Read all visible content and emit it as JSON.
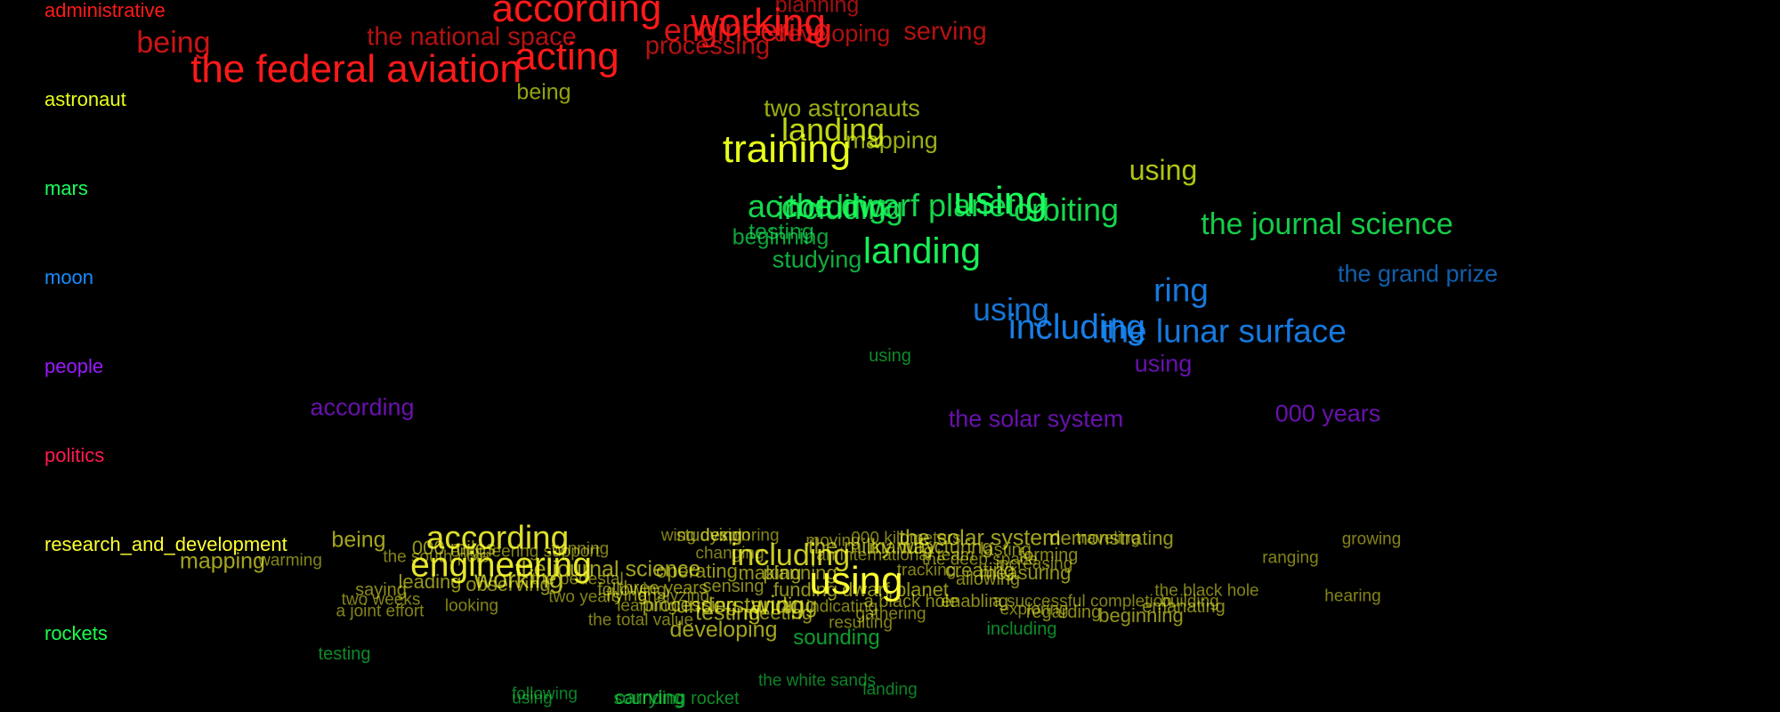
{
  "categories": [
    {
      "key": "administrative",
      "label": "administrative",
      "color": "#ff1a1a"
    },
    {
      "key": "astronaut",
      "label": "astronaut",
      "color": "#e6ff1a"
    },
    {
      "key": "mars",
      "label": "mars",
      "color": "#1aff5c"
    },
    {
      "key": "moon",
      "label": "moon",
      "color": "#1a8cff"
    },
    {
      "key": "people",
      "label": "people",
      "color": "#9b1aff"
    },
    {
      "key": "politics",
      "label": "politics",
      "color": "#ff1a4d"
    },
    {
      "key": "research_and_development",
      "label": "research_and_development",
      "color": "#ffff33"
    },
    {
      "key": "rockets",
      "label": "rockets",
      "color": "#1aff4d"
    }
  ],
  "words": [
    {
      "t": "according",
      "c": "administrative",
      "s": 1.0
    },
    {
      "t": "planning",
      "c": "administrative",
      "s": 0.45
    },
    {
      "t": "working",
      "c": "administrative",
      "s": 1.0
    },
    {
      "t": "engineering",
      "c": "administrative",
      "s": 0.75
    },
    {
      "t": "developing",
      "c": "administrative",
      "s": 0.5
    },
    {
      "t": "serving",
      "c": "administrative",
      "s": 0.55
    },
    {
      "t": "being",
      "c": "administrative",
      "s": 0.7
    },
    {
      "t": "the national space",
      "c": "administrative",
      "s": 0.55
    },
    {
      "t": "acting",
      "c": "administrative",
      "s": 1.0
    },
    {
      "t": "processing",
      "c": "administrative",
      "s": 0.55
    },
    {
      "t": "the federal aviation",
      "c": "administrative",
      "s": 1.0
    },
    {
      "t": "being",
      "c": "astronaut",
      "s": 0.45
    },
    {
      "t": "two astronauts",
      "c": "astronaut",
      "s": 0.5
    },
    {
      "t": "landing",
      "c": "astronaut",
      "s": 0.75
    },
    {
      "t": "mapping",
      "c": "astronaut",
      "s": 0.5
    },
    {
      "t": "training",
      "c": "astronaut",
      "s": 1.0
    },
    {
      "t": "using",
      "c": "astronaut",
      "s": 0.65
    },
    {
      "t": "the dwarf planet",
      "c": "mars",
      "s": 0.75
    },
    {
      "t": "according",
      "c": "mars",
      "s": 0.75
    },
    {
      "t": "including",
      "c": "mars",
      "s": 0.75
    },
    {
      "t": "using",
      "c": "mars",
      "s": 1.0
    },
    {
      "t": "orbiting",
      "c": "mars",
      "s": 0.75
    },
    {
      "t": "testing",
      "c": "mars",
      "s": 0.45
    },
    {
      "t": "beginning",
      "c": "mars",
      "s": 0.45
    },
    {
      "t": "landing",
      "c": "mars",
      "s": 0.9
    },
    {
      "t": "studying",
      "c": "mars",
      "s": 0.5
    },
    {
      "t": "the journal science",
      "c": "mars",
      "s": 0.7
    },
    {
      "t": "ring",
      "c": "moon",
      "s": 0.8
    },
    {
      "t": "the grand prize",
      "c": "moon",
      "s": 0.5
    },
    {
      "t": "using",
      "c": "moon",
      "s": 0.75
    },
    {
      "t": "including",
      "c": "moon",
      "s": 0.85
    },
    {
      "t": "the lunar surface",
      "c": "moon",
      "s": 0.8
    },
    {
      "t": "using",
      "c": "people",
      "s": 0.5
    },
    {
      "t": "according",
      "c": "people",
      "s": 0.5
    },
    {
      "t": "the solar system",
      "c": "people",
      "s": 0.5
    },
    {
      "t": "000 years",
      "c": "people",
      "s": 0.5
    },
    {
      "t": "being",
      "c": "research_and_development",
      "s": 0.45
    },
    {
      "t": "mapping",
      "c": "research_and_development",
      "s": 0.45
    },
    {
      "t": "warming",
      "c": "research_and_development",
      "s": 0.25
    },
    {
      "t": "according",
      "c": "research_and_development",
      "s": 0.8
    },
    {
      "t": "000 miles",
      "c": "research_and_development",
      "s": 0.35
    },
    {
      "t": "the south pole",
      "c": "research_and_development",
      "s": 0.25
    },
    {
      "t": "winning",
      "c": "research_and_development",
      "s": 0.25
    },
    {
      "t": "engineering support",
      "c": "research_and_development",
      "s": 0.25
    },
    {
      "t": "engineering",
      "c": "research_and_development",
      "s": 0.85
    },
    {
      "t": "the journal science",
      "c": "research_and_development",
      "s": 0.45
    },
    {
      "t": "operating",
      "c": "research_and_development",
      "s": 0.35
    },
    {
      "t": "saying",
      "c": "research_and_development",
      "s": 0.3
    },
    {
      "t": "two weeks",
      "c": "research_and_development",
      "s": 0.25
    },
    {
      "t": "a joint effort",
      "c": "research_and_development",
      "s": 0.25
    },
    {
      "t": "leading",
      "c": "research_and_development",
      "s": 0.35
    },
    {
      "t": "looking",
      "c": "research_and_development",
      "s": 0.25
    },
    {
      "t": "observing",
      "c": "research_and_development",
      "s": 0.35
    },
    {
      "t": "working",
      "c": "research_and_development",
      "s": 0.55
    },
    {
      "t": "the pedestal",
      "c": "research_and_development",
      "s": 0.25
    },
    {
      "t": "two years",
      "c": "research_and_development",
      "s": 0.25
    },
    {
      "t": "flying",
      "c": "research_and_development",
      "s": 0.3
    },
    {
      "t": "following",
      "c": "research_and_development",
      "s": 0.3
    },
    {
      "t": "three years",
      "c": "research_and_development",
      "s": 0.3
    },
    {
      "t": "analyzing",
      "c": "research_and_development",
      "s": 0.25
    },
    {
      "t": "learning",
      "c": "research_and_development",
      "s": 0.25
    },
    {
      "t": "processing",
      "c": "research_and_development",
      "s": 0.35
    },
    {
      "t": "wing design",
      "c": "research_and_development",
      "s": 0.25
    },
    {
      "t": "studying",
      "c": "research_and_development",
      "s": 0.3
    },
    {
      "t": "exploring",
      "c": "research_and_development",
      "s": 0.25
    },
    {
      "t": "changing",
      "c": "research_and_development",
      "s": 0.25
    },
    {
      "t": "sensing",
      "c": "research_and_development",
      "s": 0.3
    },
    {
      "t": "testing",
      "c": "research_and_development",
      "s": 0.45
    },
    {
      "t": "meeting",
      "c": "research_and_development",
      "s": 0.35
    },
    {
      "t": "funding",
      "c": "research_and_development",
      "s": 0.35
    },
    {
      "t": "wing",
      "c": "research_and_development",
      "s": 0.55
    },
    {
      "t": "understanding",
      "c": "research_and_development",
      "s": 0.45
    },
    {
      "t": "including",
      "c": "research_and_development",
      "s": 0.7
    },
    {
      "t": "making",
      "c": "research_and_development",
      "s": 0.35
    },
    {
      "t": "planning",
      "c": "research_and_development",
      "s": 0.35
    },
    {
      "t": "moving",
      "c": "research_and_development",
      "s": 0.25
    },
    {
      "t": "the milky way",
      "c": "research_and_development",
      "s": 0.4
    },
    {
      "t": "an international team",
      "c": "research_and_development",
      "s": 0.25
    },
    {
      "t": "using",
      "c": "research_and_development",
      "s": 1.0
    },
    {
      "t": "indicating",
      "c": "research_and_development",
      "s": 0.25
    },
    {
      "t": "resulting",
      "c": "research_and_development",
      "s": 0.25
    },
    {
      "t": "000 kilometers",
      "c": "research_and_development",
      "s": 0.25
    },
    {
      "t": "manufacturing",
      "c": "research_and_development",
      "s": 0.35
    },
    {
      "t": "dwarf planet",
      "c": "research_and_development",
      "s": 0.35
    },
    {
      "t": "a black hole",
      "c": "research_and_development",
      "s": 0.3
    },
    {
      "t": "gathering",
      "c": "research_and_development",
      "s": 0.25
    },
    {
      "t": "tracking",
      "c": "research_and_development",
      "s": 0.25
    },
    {
      "t": "the solar system",
      "c": "research_and_development",
      "s": 0.45
    },
    {
      "t": "the deep space",
      "c": "research_and_development",
      "s": 0.25
    },
    {
      "t": "creating",
      "c": "research_and_development",
      "s": 0.35
    },
    {
      "t": "measuring",
      "c": "research_and_development",
      "s": 0.35
    },
    {
      "t": "lasting",
      "c": "research_and_development",
      "s": 0.3
    },
    {
      "t": "forming",
      "c": "research_and_development",
      "s": 0.3
    },
    {
      "t": "increasing",
      "c": "research_and_development",
      "s": 0.25
    },
    {
      "t": "allowing",
      "c": "research_and_development",
      "s": 0.3
    },
    {
      "t": "enabling",
      "c": "research_and_development",
      "s": 0.3
    },
    {
      "t": "a successful completion",
      "c": "research_and_development",
      "s": 0.25
    },
    {
      "t": "exploring",
      "c": "research_and_development",
      "s": 0.25
    },
    {
      "t": "regarding",
      "c": "research_and_development",
      "s": 0.3
    },
    {
      "t": "demonstrating",
      "c": "research_and_development",
      "s": 0.35
    },
    {
      "t": "traveling",
      "c": "research_and_development",
      "s": 0.25
    },
    {
      "t": "building",
      "c": "research_and_development",
      "s": 0.25
    },
    {
      "t": "beginning",
      "c": "research_and_development",
      "s": 0.35
    },
    {
      "t": "emanating",
      "c": "research_and_development",
      "s": 0.3
    },
    {
      "t": "the black hole",
      "c": "research_and_development",
      "s": 0.25
    },
    {
      "t": "ranging",
      "c": "research_and_development",
      "s": 0.25
    },
    {
      "t": "growing",
      "c": "research_and_development",
      "s": 0.25
    },
    {
      "t": "hearing",
      "c": "research_and_development",
      "s": 0.25
    },
    {
      "t": "the total value",
      "c": "research_and_development",
      "s": 0.25
    },
    {
      "t": "developing",
      "c": "research_and_development",
      "s": 0.45
    },
    {
      "t": "sounding",
      "c": "rockets",
      "s": 0.4
    },
    {
      "t": "including",
      "c": "rockets",
      "s": 0.3
    },
    {
      "t": "testing",
      "c": "rockets",
      "s": 0.3
    },
    {
      "t": "the white sands",
      "c": "rockets",
      "s": 0.25
    },
    {
      "t": "landing",
      "c": "rockets",
      "s": 0.25
    },
    {
      "t": "following",
      "c": "rockets",
      "s": 0.25
    },
    {
      "t": "using",
      "c": "rockets",
      "s": 0.25
    },
    {
      "t": "carrying",
      "c": "rockets",
      "s": 0.35
    },
    {
      "t": "sounding rocket",
      "c": "rockets",
      "s": 0.3
    },
    {
      "t": "using",
      "c": "rockets",
      "s": 0.3
    }
  ]
}
